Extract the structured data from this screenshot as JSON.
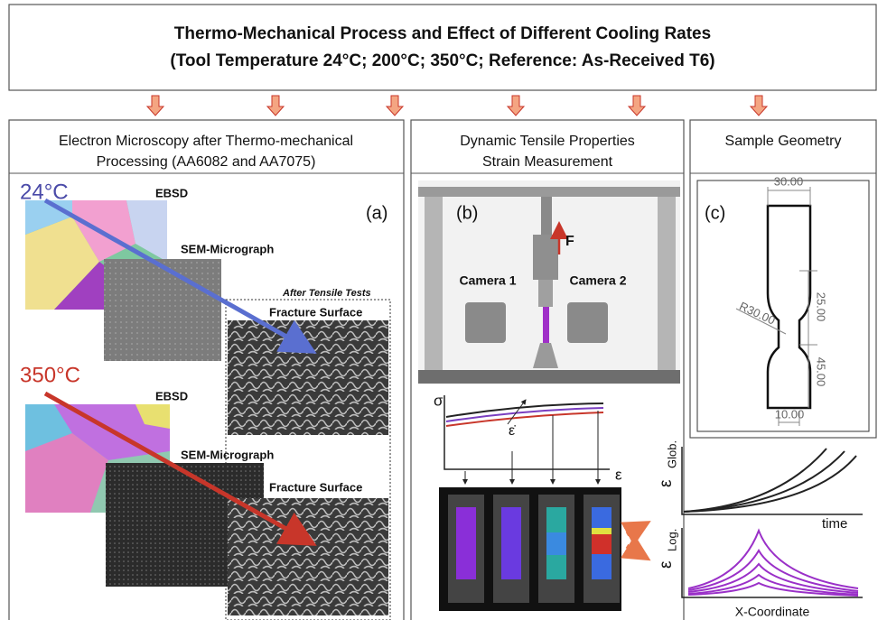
{
  "header": {
    "title": "Thermo-Mechanical Process and Effect of Different Cooling Rates",
    "subtitle": "(Tool Temperature 24°C; 200°C; 350°C; Reference: As-Received T6)"
  },
  "panel_a": {
    "heading": [
      "Electron Microscopy after Thermo-mechanical",
      "Processing (AA6082 and AA7075)"
    ],
    "tag": "(a)",
    "tensile_note": "After Tensile Tests",
    "rows": [
      {
        "temperature": "24°C",
        "ebsd": "EBSD",
        "sem": "SEM-Micrograph",
        "fracture": "Fracture Surface"
      },
      {
        "temperature": "350°C",
        "ebsd": "EBSD",
        "sem": "SEM-Micrograph",
        "fracture": "Fracture Surface"
      }
    ]
  },
  "panel_b": {
    "heading": [
      "Dynamic Tensile Properties",
      "Strain Measurement"
    ],
    "tag": "(b)",
    "force": "F",
    "cameras": [
      "Camera 1",
      "Camera 2"
    ],
    "stress_strain": {
      "y_label": "σ",
      "rate_label": "ε̇",
      "x_label": "ε"
    },
    "global_strain": {
      "y_label": "ε",
      "y_sub": "Glob.",
      "x_label": "time"
    },
    "local_strain": {
      "y_label": "ε",
      "y_sub": "Log.",
      "x_label": "X-Coordinate"
    }
  },
  "panel_c": {
    "heading": "Sample Geometry",
    "tag": "(c)",
    "dimensions": [
      "30.00",
      "25.00",
      "R30.00",
      "45.00",
      "10.00"
    ]
  }
}
